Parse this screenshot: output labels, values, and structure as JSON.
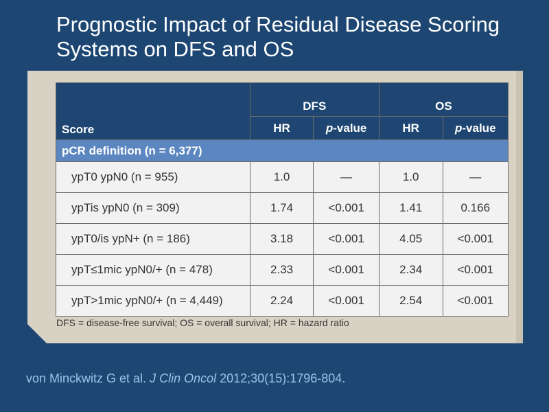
{
  "title": "Prognostic Impact of Residual Disease Scoring Systems on DFS and OS",
  "table": {
    "header": {
      "score": "Score",
      "dfs": "DFS",
      "os": "OS",
      "hr": "HR",
      "p_italic": "p",
      "p_rest": "-value"
    },
    "section_label": "pCR definition (n = 6,377)",
    "rows": [
      {
        "label": "ypT0 ypN0 (n = 955)",
        "dfs_hr": "1.0",
        "dfs_p": "—",
        "os_hr": "1.0",
        "os_p": "—"
      },
      {
        "label": "ypTis ypN0 (n = 309)",
        "dfs_hr": "1.74",
        "dfs_p": "<0.001",
        "os_hr": "1.41",
        "os_p": "0.166"
      },
      {
        "label": "ypT0/is ypN+ (n = 186)",
        "dfs_hr": "3.18",
        "dfs_p": "<0.001",
        "os_hr": "4.05",
        "os_p": "<0.001"
      },
      {
        "label": "ypT≤1mic ypN0/+ (n = 478)",
        "dfs_hr": "2.33",
        "dfs_p": "<0.001",
        "os_hr": "2.34",
        "os_p": "<0.001"
      },
      {
        "label": "ypT>1mic ypN0/+ (n = 4,449)",
        "dfs_hr": "2.24",
        "dfs_p": "<0.001",
        "os_hr": "2.54",
        "os_p": "<0.001"
      }
    ]
  },
  "footnote": "DFS = disease-free survival; OS = overall survival; HR = hazard ratio",
  "citation": {
    "authors": "von Minckwitz G et al.",
    "journal": "J Clin Oncol",
    "ref": "2012;30(15):1796-804."
  }
}
